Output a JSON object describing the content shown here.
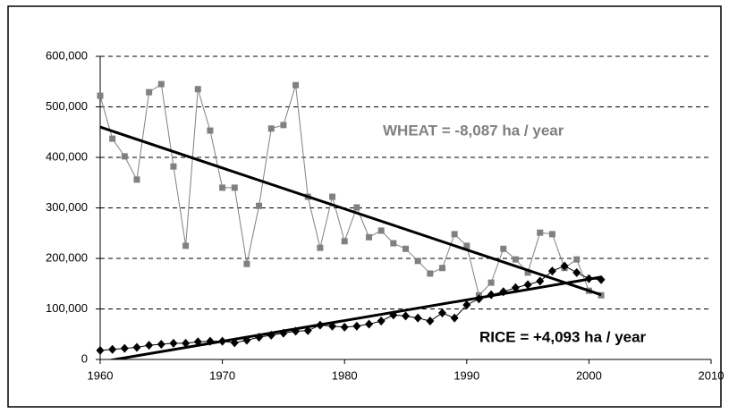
{
  "chart_data": {
    "type": "line",
    "x": [
      1960,
      1961,
      1962,
      1963,
      1964,
      1965,
      1966,
      1967,
      1968,
      1969,
      1970,
      1971,
      1972,
      1973,
      1974,
      1975,
      1976,
      1977,
      1978,
      1979,
      1980,
      1981,
      1982,
      1983,
      1984,
      1985,
      1986,
      1987,
      1988,
      1989,
      1990,
      1991,
      1992,
      1993,
      1994,
      1995,
      1996,
      1997,
      1998,
      1999,
      2000,
      2001
    ],
    "series": [
      {
        "color": "#808080",
        "marker": "square",
        "values": [
          522000,
          437000,
          402000,
          356000,
          529000,
          545000,
          382000,
          225000,
          535000,
          453000,
          340000,
          340000,
          189000,
          304000,
          457000,
          464000,
          543000,
          322000,
          221000,
          322000,
          234000,
          301000,
          242000,
          255000,
          230000,
          219000,
          195000,
          170000,
          181000,
          248000,
          225000,
          127000,
          152000,
          219000,
          198000,
          172000,
          251000,
          248000,
          181000,
          198000,
          136000,
          127000
        ]
      },
      {
        "color": "#000000",
        "marker": "diamond",
        "values": [
          18000,
          20000,
          22000,
          24000,
          28000,
          30000,
          32000,
          32000,
          35000,
          36000,
          36000,
          33000,
          38000,
          44000,
          48000,
          52000,
          56000,
          57000,
          68000,
          66000,
          64000,
          66000,
          70000,
          76000,
          88000,
          86000,
          82000,
          76000,
          92000,
          82000,
          108000,
          120000,
          128000,
          134000,
          142000,
          148000,
          155000,
          175000,
          185000,
          172000,
          160000,
          158000
        ]
      }
    ],
    "trendlines": [
      {
        "color": "#000000",
        "x": [
          1960,
          2001
        ],
        "values": [
          460000,
          128000
        ]
      },
      {
        "color": "#000000",
        "x": [
          1960,
          2001
        ],
        "values": [
          -5000,
          163000
        ]
      }
    ],
    "annotations": [
      {
        "text": "WHEAT = -8,087 ha / year",
        "color": "#808080"
      },
      {
        "text": "RICE = +4,093 ha / year",
        "color": "#000000"
      }
    ],
    "xlim": [
      1960,
      2010
    ],
    "xticks": [
      1960,
      1970,
      1980,
      1990,
      2000,
      2010
    ],
    "ylim": [
      0,
      600000
    ],
    "yticks": [
      0,
      {
        "value": 100000,
        "label": "100,000"
      },
      {
        "value": 200000,
        "label": "200,000"
      },
      {
        "value": 300000,
        "label": "300,000"
      },
      {
        "value": 400000,
        "label": "400,000"
      },
      {
        "value": 500000,
        "label": "500,000"
      },
      {
        "value": 600000,
        "label": "600,000"
      }
    ],
    "grid": true
  }
}
